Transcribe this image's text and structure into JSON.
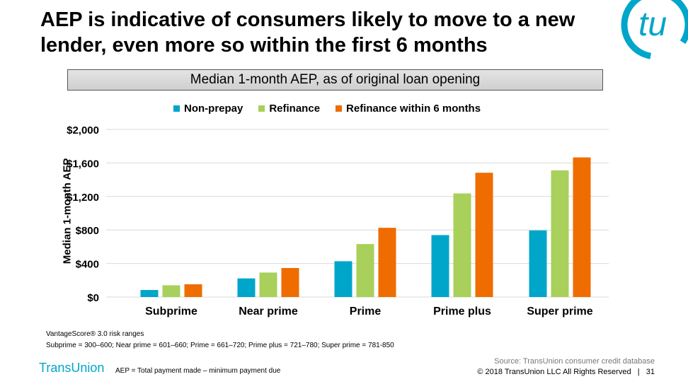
{
  "title": "AEP is indicative of consumers likely to move to a new lender, even more so within the first 6 months",
  "subtitle": "Median 1-month AEP, as of original loan opening",
  "logo_text": "tu",
  "chart_data": {
    "type": "bar",
    "title": "Median 1-month AEP, as of original loan opening",
    "ylabel": "Median 1-month AEP",
    "xlabel": "",
    "ylim": [
      0,
      2000
    ],
    "yticks": [
      0,
      400,
      800,
      1200,
      1600,
      2000
    ],
    "ytick_labels": [
      "$0",
      "$400",
      "$800",
      "$1,200",
      "$1,600",
      "$2,000"
    ],
    "grid": true,
    "legend_position": "top",
    "categories": [
      "Subprime",
      "Near prime",
      "Prime",
      "Prime plus",
      "Super prime"
    ],
    "series": [
      {
        "name": "Non-prepay",
        "color": "#00a6ca",
        "values": [
          84,
          222,
          427,
          739,
          795
        ]
      },
      {
        "name": "Refinance",
        "color": "#a8d05a",
        "values": [
          140,
          292,
          632,
          1236,
          1511
        ]
      },
      {
        "name": "Refinance within 6 months",
        "color": "#ef6c00",
        "values": [
          152,
          346,
          826,
          1483,
          1666
        ]
      }
    ]
  },
  "footer": {
    "note1": "VantageScore® 3.0 risk ranges",
    "note2": "Subprime = 300–600; Near prime = 601–660; Prime = 661–720; Prime plus = 721–780; Super prime = 781-850",
    "brand": "TransUnion",
    "aep_def": "AEP = Total payment made – minimum payment due",
    "source": "Source: TransUnion consumer credit database",
    "copyright": "© 2018 TransUnion LLC All Rights Reserved   |   31"
  }
}
